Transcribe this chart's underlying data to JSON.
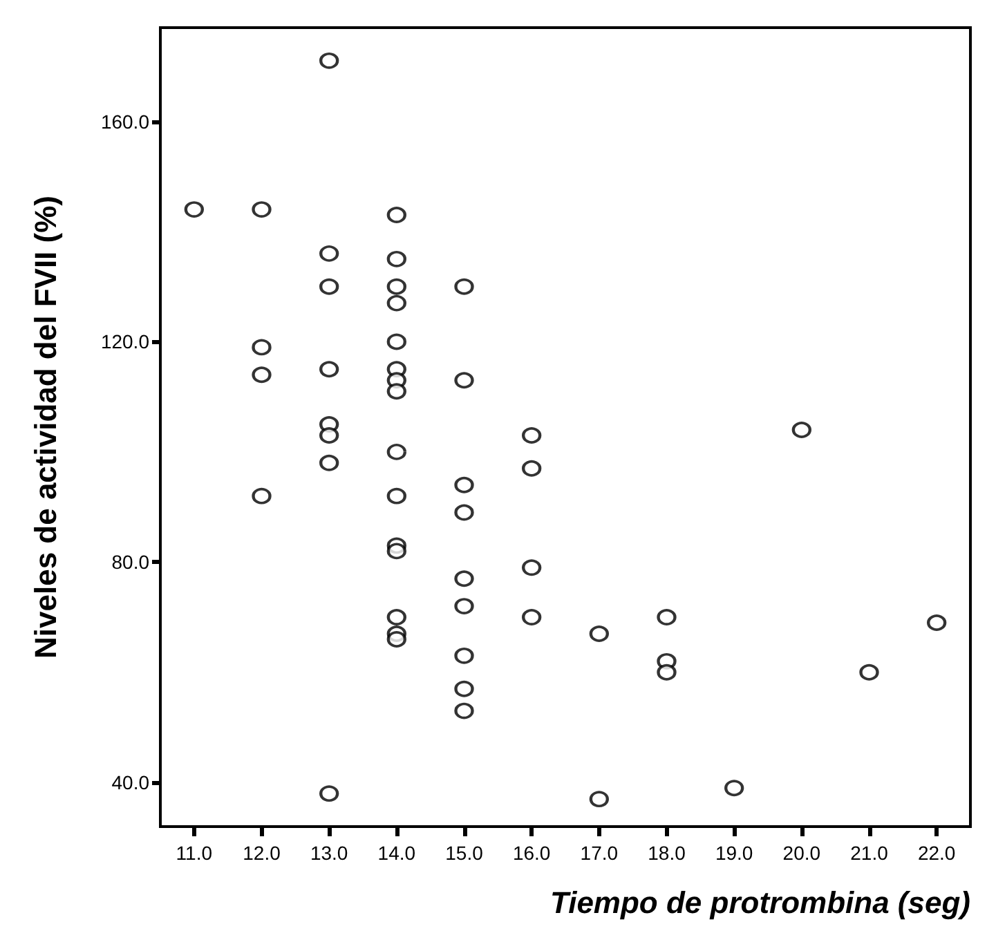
{
  "chart_data": {
    "type": "scatter",
    "xlabel": "Tiempo de protrombina (seg)",
    "ylabel": "Niveles de actividad del FVII (%)",
    "x": [
      11,
      12,
      12,
      12,
      12,
      13,
      13,
      13,
      13,
      13,
      13,
      13,
      13,
      14,
      14,
      14,
      14,
      14,
      14,
      14,
      14,
      14,
      14,
      14,
      14,
      14,
      14,
      14,
      15,
      15,
      15,
      15,
      15,
      15,
      15,
      15,
      15,
      16,
      16,
      16,
      16,
      17,
      17,
      18,
      18,
      18,
      19,
      20,
      21,
      22
    ],
    "values": [
      144,
      144,
      119,
      114,
      92,
      171,
      136,
      130,
      115,
      105,
      103,
      98,
      38,
      143,
      135,
      130,
      127,
      120,
      115,
      113,
      111,
      100,
      92,
      83,
      82,
      70,
      67,
      66,
      130,
      113,
      94,
      89,
      77,
      72,
      63,
      57,
      53,
      103,
      97,
      79,
      70,
      67,
      37,
      70,
      62,
      60,
      39,
      104,
      60,
      69
    ],
    "color": "#000000",
    "marker": "circle",
    "grid": false,
    "xlim": [
      10.5,
      22.5
    ],
    "ylim": [
      32,
      177
    ],
    "xticks": [
      {
        "value": 11,
        "label": "11.0"
      },
      {
        "value": 12,
        "label": "12.0"
      },
      {
        "value": 13,
        "label": "13.0"
      },
      {
        "value": 14,
        "label": "14.0"
      },
      {
        "value": 15,
        "label": "15.0"
      },
      {
        "value": 16,
        "label": "16.0"
      },
      {
        "value": 17,
        "label": "17.0"
      },
      {
        "value": 18,
        "label": "18.0"
      },
      {
        "value": 19,
        "label": "19.0"
      },
      {
        "value": 20,
        "label": "20.0"
      },
      {
        "value": 21,
        "label": "21.0"
      },
      {
        "value": 22,
        "label": "22.0"
      }
    ],
    "yticks": [
      {
        "value": 40,
        "label": "40.0"
      },
      {
        "value": 80,
        "label": "80.0"
      },
      {
        "value": 120,
        "label": "120.0"
      },
      {
        "value": 160,
        "label": "160.0"
      }
    ]
  }
}
